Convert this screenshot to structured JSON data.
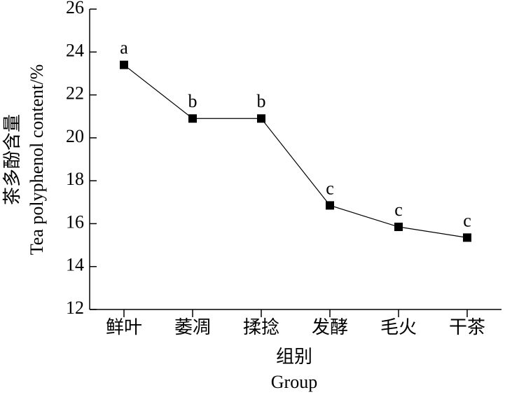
{
  "chart_data": {
    "type": "line",
    "categories": [
      "鲜叶",
      "萎凋",
      "揉捻",
      "发酵",
      "毛火",
      "干茶"
    ],
    "values": [
      23.4,
      20.9,
      20.9,
      16.85,
      15.85,
      15.35
    ],
    "point_labels": [
      "a",
      "b",
      "b",
      "c",
      "c",
      "c"
    ],
    "color": "#000000",
    "ylim": [
      12,
      26
    ],
    "yticks": [
      12,
      14,
      16,
      18,
      20,
      22,
      24,
      26
    ],
    "y_label": [
      "茶多酚含量",
      "Tea polyphenol content/%"
    ],
    "x_label": [
      "组别",
      "Group"
    ],
    "grid": false
  }
}
